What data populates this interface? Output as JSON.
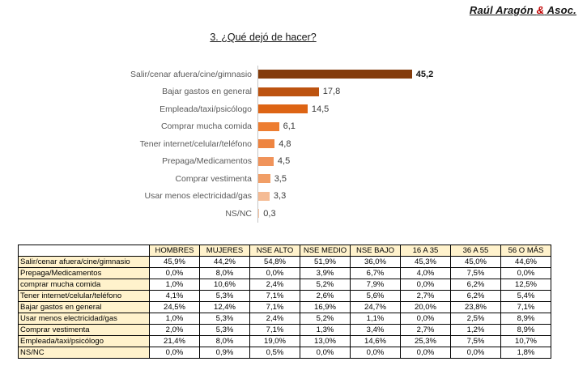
{
  "brand": {
    "text_before_amp": "Raúl Aragón ",
    "ampersand": "&",
    "text_after_amp": " Asoc.",
    "amp_color": "#C00000"
  },
  "chart_data": [
    {
      "type": "bar",
      "orientation": "horizontal",
      "title": "3. ¿Qué dejó de hacer?",
      "categories": [
        "Salir/cenar afuera/cine/gimnasio",
        "Bajar gastos en general",
        "Empleada/taxi/psicólogo",
        "Comprar mucha comida",
        "Tener internet/celular/teléfono",
        "Prepaga/Medicamentos",
        "Comprar vestimenta",
        "Usar menos electricidad/gas",
        "NS/NC"
      ],
      "values": [
        45.2,
        17.8,
        14.5,
        6.1,
        4.8,
        4.5,
        3.5,
        3.3,
        0.3
      ],
      "value_labels": [
        "45,2",
        "17,8",
        "14,5",
        "6,1",
        "4,8",
        "4,5",
        "3,5",
        "3,3",
        "0,3"
      ],
      "xlim": [
        0,
        50
      ],
      "grid": false,
      "legend_position": "none",
      "axis_line_color": "#C6C6C6",
      "bar_colors": [
        "#843C0C",
        "#BC5310",
        "#DD6414",
        "#ED7D31",
        "#EE8440",
        "#F0935A",
        "#F19E66",
        "#F5BB94",
        "#F7C6A4"
      ]
    },
    {
      "type": "table",
      "header_bg": "#FFF2CC",
      "columns": [
        "HOMBRES",
        "MUJERES",
        "NSE ALTO",
        "NSE MEDIO",
        "NSE BAJO",
        "16 A 35",
        "36 A 55",
        "56 O MÁS"
      ],
      "rows": [
        {
          "label": "Salir/cenar afuera/cine/gimnasio",
          "values": [
            "45,9%",
            "44,2%",
            "54,8%",
            "51,9%",
            "36,0%",
            "45,3%",
            "45,0%",
            "44,6%"
          ]
        },
        {
          "label": "Prepaga/Medicamentos",
          "values": [
            "0,0%",
            "8,0%",
            "0,0%",
            "3,9%",
            "6,7%",
            "4,0%",
            "7,5%",
            "0,0%"
          ]
        },
        {
          "label": "comprar mucha comida",
          "values": [
            "1,0%",
            "10,6%",
            "2,4%",
            "5,2%",
            "7,9%",
            "0,0%",
            "6,2%",
            "12,5%"
          ]
        },
        {
          "label": "Tener internet/celular/teléfono",
          "values": [
            "4,1%",
            "5,3%",
            "7,1%",
            "2,6%",
            "5,6%",
            "2,7%",
            "6,2%",
            "5,4%"
          ]
        },
        {
          "label": "Bajar gastos en general",
          "values": [
            "24,5%",
            "12,4%",
            "7,1%",
            "16,9%",
            "24,7%",
            "20,0%",
            "23,8%",
            "7,1%"
          ]
        },
        {
          "label": "Usar menos electricidad/gas",
          "values": [
            "1,0%",
            "5,3%",
            "2,4%",
            "5,2%",
            "1,1%",
            "0,0%",
            "2,5%",
            "8,9%"
          ]
        },
        {
          "label": "Comprar vestimenta",
          "values": [
            "2,0%",
            "5,3%",
            "7,1%",
            "1,3%",
            "3,4%",
            "2,7%",
            "1,2%",
            "8,9%"
          ]
        },
        {
          "label": "Empleada/taxi/psicólogo",
          "values": [
            "21,4%",
            "8,0%",
            "19,0%",
            "13,0%",
            "14,6%",
            "25,3%",
            "7,5%",
            "10,7%"
          ]
        },
        {
          "label": "NS/NC",
          "values": [
            "0,0%",
            "0,9%",
            "0,5%",
            "0,0%",
            "0,0%",
            "0,0%",
            "0,0%",
            "1,8%"
          ]
        }
      ]
    }
  ]
}
